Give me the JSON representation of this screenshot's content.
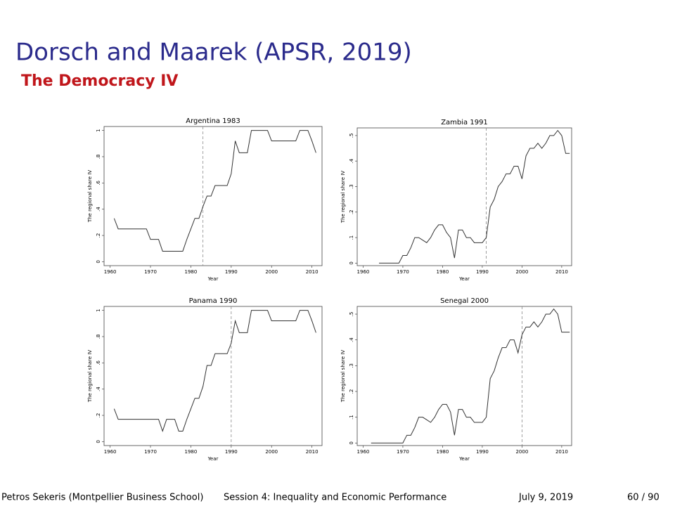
{
  "header": {
    "title": "Dorsch and Maarek (APSR, 2019)",
    "subtitle": "The Democracy IV"
  },
  "chart_data": [
    {
      "type": "line",
      "title": "Argentina 1983",
      "xlabel": "Year",
      "ylabel": "The regional share IV",
      "color": "#333333",
      "event_year": 1983,
      "x": [
        1961,
        1962,
        1963,
        1964,
        1965,
        1966,
        1967,
        1968,
        1969,
        1970,
        1971,
        1972,
        1973,
        1974,
        1975,
        1976,
        1977,
        1978,
        1979,
        1980,
        1981,
        1982,
        1983,
        1984,
        1985,
        1986,
        1987,
        1988,
        1989,
        1990,
        1991,
        1992,
        1993,
        1994,
        1995,
        1996,
        1997,
        1998,
        1999,
        2000,
        2001,
        2002,
        2003,
        2004,
        2005,
        2006,
        2007,
        2008,
        2009,
        2010,
        2011
      ],
      "values": [
        0.33,
        0.25,
        0.25,
        0.25,
        0.25,
        0.25,
        0.25,
        0.25,
        0.25,
        0.17,
        0.17,
        0.17,
        0.08,
        0.08,
        0.08,
        0.08,
        0.08,
        0.08,
        0.17,
        0.25,
        0.33,
        0.33,
        0.42,
        0.5,
        0.5,
        0.58,
        0.58,
        0.58,
        0.58,
        0.67,
        0.92,
        0.83,
        0.83,
        0.83,
        1,
        1,
        1,
        1,
        1,
        0.92,
        0.92,
        0.92,
        0.92,
        0.92,
        0.92,
        0.92,
        1,
        1,
        1,
        0.92,
        0.83
      ],
      "xlim": [
        1958.5,
        2012.5
      ],
      "ylim": [
        -0.03,
        1.03
      ],
      "xticks": [
        1960,
        1970,
        1980,
        1990,
        2000,
        2010
      ],
      "yticks": [
        0,
        {
          "value": 0.2,
          "label": ".2"
        },
        {
          "value": 0.4,
          "label": ".4"
        },
        {
          "value": 0.6,
          "label": ".6"
        },
        {
          "value": 0.8,
          "label": ".8"
        },
        1
      ]
    },
    {
      "type": "line",
      "title": "Zambia 1991",
      "xlabel": "Year",
      "ylabel": "The regional share IV",
      "color": "#333333",
      "event_year": 1991,
      "x": [
        1964,
        1965,
        1966,
        1967,
        1968,
        1969,
        1970,
        1971,
        1972,
        1973,
        1974,
        1975,
        1976,
        1977,
        1978,
        1979,
        1980,
        1981,
        1982,
        1983,
        1984,
        1985,
        1986,
        1987,
        1988,
        1989,
        1990,
        1991,
        1992,
        1993,
        1994,
        1995,
        1996,
        1997,
        1998,
        1999,
        2000,
        2001,
        2002,
        2003,
        2004,
        2005,
        2006,
        2007,
        2008,
        2009,
        2010,
        2011,
        2012
      ],
      "values": [
        0,
        0,
        0,
        0,
        0,
        0,
        0.03,
        0.03,
        0.06,
        0.1,
        0.1,
        0.09,
        0.08,
        0.1,
        0.13,
        0.15,
        0.15,
        0.12,
        0.1,
        0.02,
        0.13,
        0.13,
        0.1,
        0.1,
        0.08,
        0.08,
        0.08,
        0.1,
        0.22,
        0.25,
        0.3,
        0.32,
        0.35,
        0.35,
        0.38,
        0.38,
        0.33,
        0.42,
        0.45,
        0.45,
        0.47,
        0.45,
        0.47,
        0.5,
        0.5,
        0.52,
        0.5,
        0.43,
        0.43
      ],
      "xlim": [
        1958.5,
        2012.5
      ],
      "ylim": [
        -0.01,
        0.53
      ],
      "xticks": [
        1960,
        1970,
        1980,
        1990,
        2000,
        2010
      ],
      "yticks": [
        0,
        {
          "value": 0.1,
          "label": ".1"
        },
        {
          "value": 0.2,
          "label": ".2"
        },
        {
          "value": 0.3,
          "label": ".3"
        },
        {
          "value": 0.4,
          "label": ".4"
        },
        {
          "value": 0.5,
          "label": ".5"
        }
      ]
    },
    {
      "type": "line",
      "title": "Panama 1990",
      "xlabel": "Year",
      "ylabel": "The regional share IV",
      "color": "#333333",
      "event_year": 1990,
      "x": [
        1961,
        1962,
        1963,
        1964,
        1965,
        1966,
        1967,
        1968,
        1969,
        1970,
        1971,
        1972,
        1973,
        1974,
        1975,
        1976,
        1977,
        1978,
        1979,
        1980,
        1981,
        1982,
        1983,
        1984,
        1985,
        1986,
        1987,
        1988,
        1989,
        1990,
        1991,
        1992,
        1993,
        1994,
        1995,
        1996,
        1997,
        1998,
        1999,
        2000,
        2001,
        2002,
        2003,
        2004,
        2005,
        2006,
        2007,
        2008,
        2009,
        2010,
        2011
      ],
      "values": [
        0.25,
        0.17,
        0.17,
        0.17,
        0.17,
        0.17,
        0.17,
        0.17,
        0.17,
        0.17,
        0.17,
        0.17,
        0.08,
        0.17,
        0.17,
        0.17,
        0.08,
        0.08,
        0.17,
        0.25,
        0.33,
        0.33,
        0.42,
        0.58,
        0.58,
        0.67,
        0.67,
        0.67,
        0.67,
        0.75,
        0.92,
        0.83,
        0.83,
        0.83,
        1,
        1,
        1,
        1,
        1,
        0.92,
        0.92,
        0.92,
        0.92,
        0.92,
        0.92,
        0.92,
        1,
        1,
        1,
        0.92,
        0.83
      ],
      "xlim": [
        1958.5,
        2012.5
      ],
      "ylim": [
        -0.03,
        1.03
      ],
      "xticks": [
        1960,
        1970,
        1980,
        1990,
        2000,
        2010
      ],
      "yticks": [
        0,
        {
          "value": 0.2,
          "label": ".2"
        },
        {
          "value": 0.4,
          "label": ".4"
        },
        {
          "value": 0.6,
          "label": ".6"
        },
        {
          "value": 0.8,
          "label": ".8"
        },
        1
      ]
    },
    {
      "type": "line",
      "title": "Senegal 2000",
      "xlabel": "Year",
      "ylabel": "The regional share IV",
      "color": "#333333",
      "event_year": 2000,
      "x": [
        1962,
        1963,
        1964,
        1965,
        1966,
        1967,
        1968,
        1969,
        1970,
        1971,
        1972,
        1973,
        1974,
        1975,
        1976,
        1977,
        1978,
        1979,
        1980,
        1981,
        1982,
        1983,
        1984,
        1985,
        1986,
        1987,
        1988,
        1989,
        1990,
        1991,
        1992,
        1993,
        1994,
        1995,
        1996,
        1997,
        1998,
        1999,
        2000,
        2001,
        2002,
        2003,
        2004,
        2005,
        2006,
        2007,
        2008,
        2009,
        2010,
        2011,
        2012
      ],
      "values": [
        0,
        0,
        0,
        0,
        0,
        0,
        0,
        0,
        0,
        0.03,
        0.03,
        0.06,
        0.1,
        0.1,
        0.09,
        0.08,
        0.1,
        0.13,
        0.15,
        0.15,
        0.12,
        0.03,
        0.13,
        0.13,
        0.1,
        0.1,
        0.08,
        0.08,
        0.08,
        0.1,
        0.25,
        0.28,
        0.33,
        0.37,
        0.37,
        0.4,
        0.4,
        0.35,
        0.42,
        0.45,
        0.45,
        0.47,
        0.45,
        0.47,
        0.5,
        0.5,
        0.52,
        0.5,
        0.43,
        0.43,
        0.43
      ],
      "xlim": [
        1958.5,
        2012.5
      ],
      "ylim": [
        -0.01,
        0.53
      ],
      "xticks": [
        1960,
        1970,
        1980,
        1990,
        2000,
        2010
      ],
      "yticks": [
        0,
        {
          "value": 0.1,
          "label": ".1"
        },
        {
          "value": 0.2,
          "label": ".2"
        },
        {
          "value": 0.3,
          "label": ".3"
        },
        {
          "value": 0.4,
          "label": ".4"
        },
        {
          "value": 0.5,
          "label": ".5"
        }
      ]
    }
  ],
  "footer": {
    "author": "Petros Sekeris (Montpellier Business School)",
    "session": "Session 4: Inequality and Economic Performance",
    "date": "July 9, 2019",
    "page": "60 / 90"
  }
}
